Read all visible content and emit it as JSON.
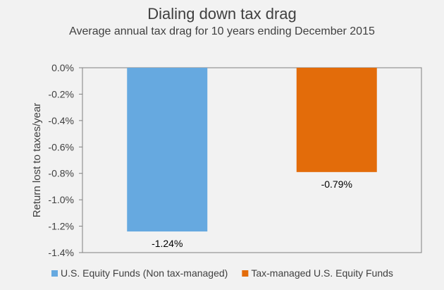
{
  "chart_data": {
    "type": "bar",
    "title": "Dialing down tax drag",
    "subtitle": "Average annual tax drag for 10 years ending December 2015",
    "xlabel": "",
    "ylabel": "Return lost to taxes/year",
    "ylim": [
      -1.4,
      0.0
    ],
    "yticks": [
      0.0,
      -0.2,
      -0.4,
      -0.6,
      -0.8,
      -1.0,
      -1.2,
      -1.4
    ],
    "ytick_labels": [
      "0.0%",
      "-0.2%",
      "-0.4%",
      "-0.6%",
      "-0.8%",
      "-1.0%",
      "-1.2%",
      "-1.4%"
    ],
    "grid": false,
    "legend_position": "bottom",
    "series": [
      {
        "name": "U.S. Equity Funds (Non tax-managed)",
        "value": -1.24,
        "label": "-1.24%",
        "color": "#66a9e0"
      },
      {
        "name": "Tax-managed U.S. Equity Funds",
        "value": -0.79,
        "label": "-0.79%",
        "color": "#e36c0a"
      }
    ]
  },
  "colors": {
    "background": "#f2f2f2",
    "axis": "#808080",
    "text": "#404040"
  }
}
